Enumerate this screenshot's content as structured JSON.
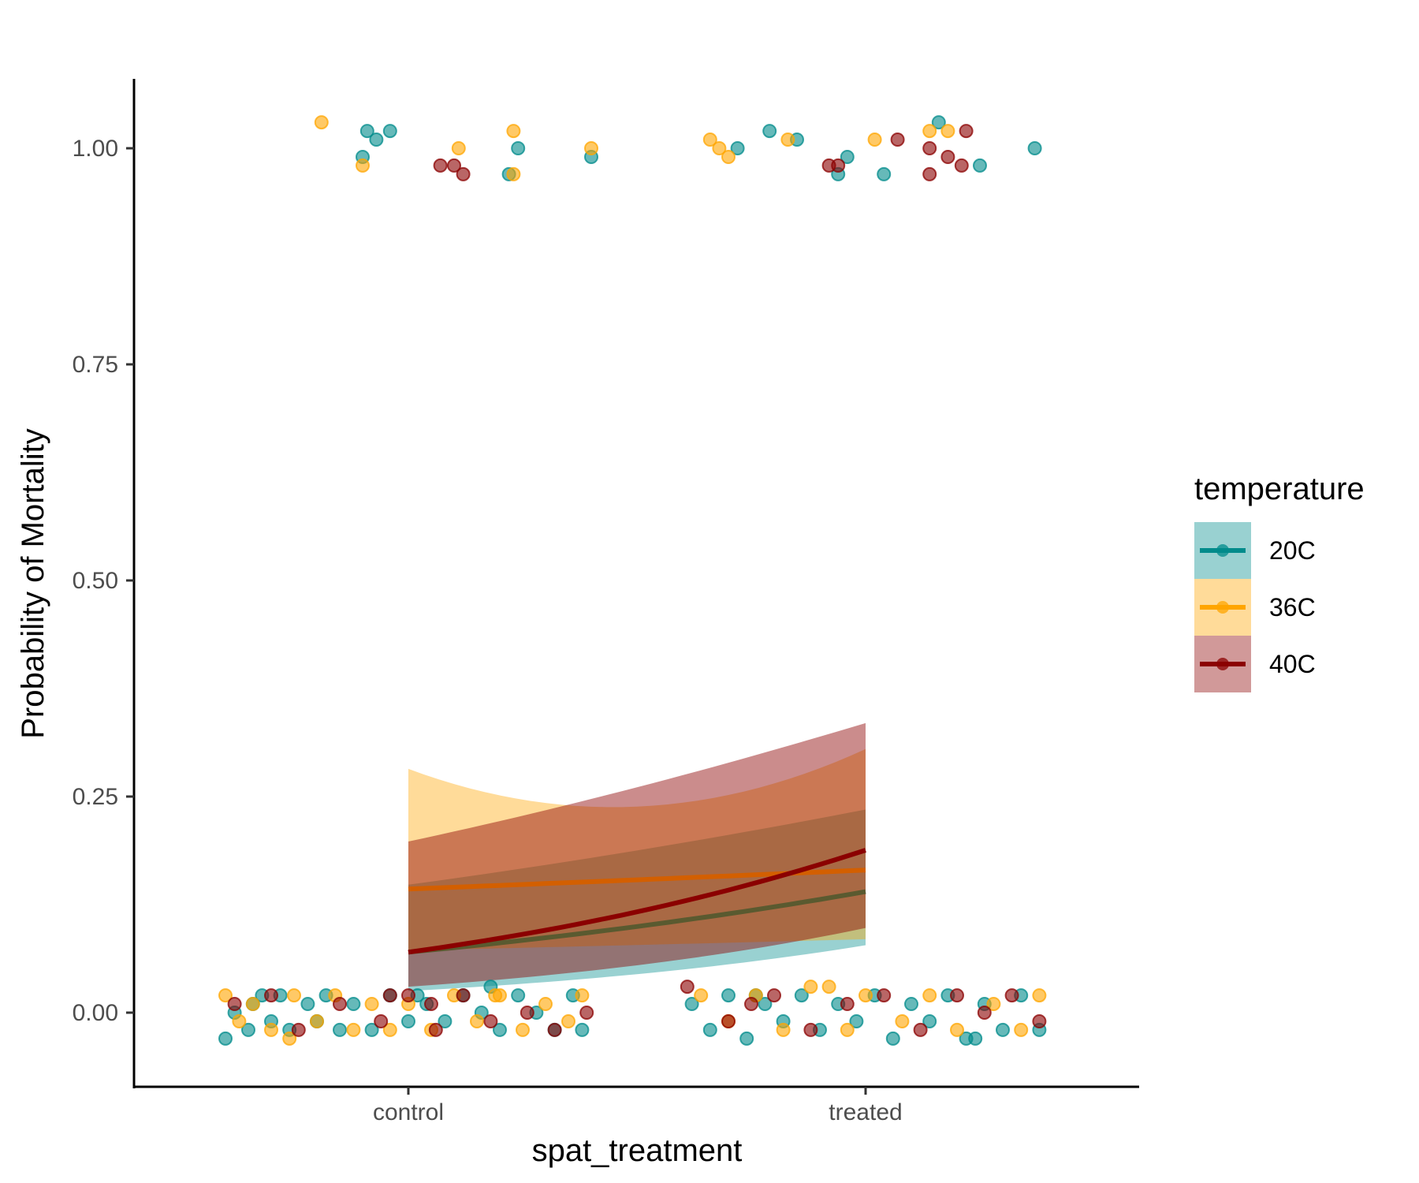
{
  "chart_data": {
    "type": "scatter",
    "xlabel": "spat_treatment",
    "ylabel": "Probability of Mortality",
    "categories": [
      "control",
      "treated"
    ],
    "y_ticks": [
      "0.00",
      "0.25",
      "0.50",
      "0.75",
      "1.00"
    ],
    "ylim": [
      -0.08,
      1.08
    ],
    "legend": {
      "title": "temperature",
      "position": "right",
      "entries": [
        "20C",
        "36C",
        "40C"
      ]
    },
    "colors": {
      "20C": "#008b8b",
      "36C": "#ffa500",
      "40C": "#8b0000"
    },
    "series": [
      {
        "name": "20C",
        "fit_x": [
          1,
          2
        ],
        "fit_y": [
          0.07,
          0.14
        ],
        "ci_lower": [
          0.025,
          0.078
        ],
        "ci_upper": [
          0.148,
          0.235
        ],
        "points": [
          [
            0.9,
            0.99
          ],
          [
            0.91,
            1.02
          ],
          [
            0.93,
            1.01
          ],
          [
            0.96,
            1.02
          ],
          [
            1.4,
            0.99
          ],
          [
            1.22,
            0.97
          ],
          [
            1.24,
            1.0
          ],
          [
            0.6,
            -0.03
          ],
          [
            0.62,
            0.0
          ],
          [
            0.65,
            -0.02
          ],
          [
            0.68,
            0.02
          ],
          [
            0.7,
            -0.01
          ],
          [
            0.72,
            0.02
          ],
          [
            0.74,
            -0.02
          ],
          [
            0.78,
            0.01
          ],
          [
            0.8,
            -0.01
          ],
          [
            0.82,
            0.02
          ],
          [
            0.85,
            -0.02
          ],
          [
            0.88,
            0.01
          ],
          [
            0.92,
            -0.02
          ],
          [
            0.96,
            0.02
          ],
          [
            1.0,
            -0.01
          ],
          [
            1.04,
            0.01
          ],
          [
            1.08,
            -0.01
          ],
          [
            1.12,
            0.02
          ],
          [
            1.16,
            0.0
          ],
          [
            1.2,
            -0.02
          ],
          [
            1.24,
            0.02
          ],
          [
            1.28,
            0.0
          ],
          [
            1.32,
            -0.02
          ],
          [
            1.36,
            0.02
          ],
          [
            1.38,
            -0.02
          ],
          [
            1.02,
            0.02
          ],
          [
            0.66,
            0.01
          ],
          [
            1.18,
            0.03
          ],
          [
            1.72,
            1.0
          ],
          [
            1.79,
            1.02
          ],
          [
            1.85,
            1.01
          ],
          [
            1.94,
            0.97
          ],
          [
            1.96,
            0.99
          ],
          [
            2.04,
            0.97
          ],
          [
            2.16,
            1.03
          ],
          [
            2.25,
            0.98
          ],
          [
            2.37,
            1.0
          ],
          [
            1.62,
            0.01
          ],
          [
            1.66,
            -0.02
          ],
          [
            1.7,
            0.02
          ],
          [
            1.74,
            -0.03
          ],
          [
            1.78,
            0.01
          ],
          [
            1.82,
            -0.01
          ],
          [
            1.86,
            0.02
          ],
          [
            1.9,
            -0.02
          ],
          [
            1.94,
            0.01
          ],
          [
            1.98,
            -0.01
          ],
          [
            2.02,
            0.02
          ],
          [
            2.06,
            -0.03
          ],
          [
            2.1,
            0.01
          ],
          [
            2.14,
            -0.01
          ],
          [
            2.18,
            0.02
          ],
          [
            2.22,
            -0.03
          ],
          [
            2.26,
            0.01
          ],
          [
            2.3,
            -0.02
          ],
          [
            2.34,
            0.02
          ],
          [
            2.38,
            -0.02
          ],
          [
            1.76,
            0.02
          ],
          [
            2.24,
            -0.03
          ]
        ]
      },
      {
        "name": "36C",
        "fit_x": [
          1,
          2
        ],
        "fit_y": [
          0.143,
          0.165
        ],
        "ci_lower": [
          0.072,
          0.085
        ],
        "ci_upper": [
          0.282,
          0.305
        ],
        "points": [
          [
            0.81,
            1.03
          ],
          [
            0.9,
            0.98
          ],
          [
            1.11,
            1.0
          ],
          [
            1.23,
            1.02
          ],
          [
            1.4,
            1.0
          ],
          [
            1.23,
            0.97
          ],
          [
            0.6,
            0.02
          ],
          [
            0.63,
            -0.01
          ],
          [
            0.66,
            0.01
          ],
          [
            0.7,
            -0.02
          ],
          [
            0.75,
            0.02
          ],
          [
            0.8,
            -0.01
          ],
          [
            0.84,
            0.02
          ],
          [
            0.88,
            -0.02
          ],
          [
            0.92,
            0.01
          ],
          [
            0.96,
            -0.02
          ],
          [
            1.0,
            0.01
          ],
          [
            1.05,
            -0.02
          ],
          [
            1.1,
            0.02
          ],
          [
            1.15,
            -0.01
          ],
          [
            1.2,
            0.02
          ],
          [
            1.25,
            -0.02
          ],
          [
            1.3,
            0.01
          ],
          [
            1.35,
            -0.01
          ],
          [
            1.38,
            0.02
          ],
          [
            0.74,
            -0.03
          ],
          [
            1.19,
            0.02
          ],
          [
            1.66,
            1.01
          ],
          [
            1.68,
            1.0
          ],
          [
            1.7,
            0.99
          ],
          [
            1.83,
            1.01
          ],
          [
            2.02,
            1.01
          ],
          [
            2.14,
            1.02
          ],
          [
            2.18,
            1.02
          ],
          [
            1.64,
            0.02
          ],
          [
            1.7,
            -0.01
          ],
          [
            1.76,
            0.02
          ],
          [
            1.82,
            -0.02
          ],
          [
            1.88,
            0.03
          ],
          [
            1.96,
            -0.02
          ],
          [
            2.0,
            0.02
          ],
          [
            2.08,
            -0.01
          ],
          [
            2.14,
            0.02
          ],
          [
            2.2,
            -0.02
          ],
          [
            2.28,
            0.01
          ],
          [
            2.34,
            -0.02
          ],
          [
            2.38,
            0.02
          ],
          [
            1.92,
            0.03
          ]
        ]
      },
      {
        "name": "40C",
        "fit_x": [
          1,
          2
        ],
        "fit_y": [
          0.07,
          0.188
        ],
        "ci_lower": [
          0.03,
          0.098
        ],
        "ci_upper": [
          0.198,
          0.335
        ],
        "points": [
          [
            1.07,
            0.98
          ],
          [
            1.1,
            0.98
          ],
          [
            1.12,
            0.97
          ],
          [
            0.62,
            0.01
          ],
          [
            0.7,
            0.02
          ],
          [
            0.76,
            -0.02
          ],
          [
            0.85,
            0.01
          ],
          [
            0.94,
            -0.01
          ],
          [
            1.0,
            0.02
          ],
          [
            1.06,
            -0.02
          ],
          [
            1.12,
            0.02
          ],
          [
            1.18,
            -0.01
          ],
          [
            1.26,
            0.0
          ],
          [
            1.32,
            -0.02
          ],
          [
            1.39,
            0.0
          ],
          [
            1.05,
            0.01
          ],
          [
            0.96,
            0.02
          ],
          [
            1.92,
            0.98
          ],
          [
            1.94,
            0.98
          ],
          [
            2.07,
            1.01
          ],
          [
            2.14,
            1.0
          ],
          [
            2.14,
            0.97
          ],
          [
            2.18,
            0.99
          ],
          [
            2.21,
            0.98
          ],
          [
            2.22,
            1.02
          ],
          [
            1.61,
            0.03
          ],
          [
            1.7,
            -0.01
          ],
          [
            1.8,
            0.02
          ],
          [
            1.88,
            -0.02
          ],
          [
            1.96,
            0.01
          ],
          [
            2.04,
            0.02
          ],
          [
            2.12,
            -0.02
          ],
          [
            2.2,
            0.02
          ],
          [
            2.26,
            0.0
          ],
          [
            2.32,
            0.02
          ],
          [
            2.38,
            -0.01
          ],
          [
            1.75,
            0.01
          ]
        ]
      }
    ]
  }
}
